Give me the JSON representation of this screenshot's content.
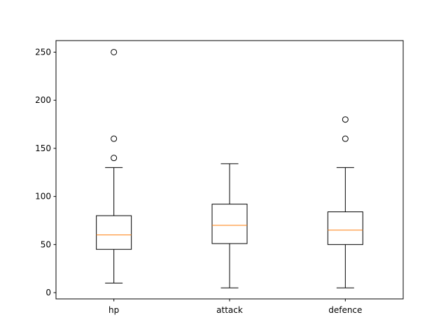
{
  "chart_data": {
    "type": "boxplot",
    "categories": [
      "hp",
      "attack",
      "defence"
    ],
    "boxes": [
      {
        "name": "hp",
        "whisker_low": 10,
        "q1": 45,
        "median": 60,
        "q3": 80,
        "whisker_high": 130,
        "outliers": [
          140,
          160,
          250
        ]
      },
      {
        "name": "attack",
        "whisker_low": 5,
        "q1": 51,
        "median": 70,
        "q3": 92,
        "whisker_high": 134,
        "outliers": []
      },
      {
        "name": "defence",
        "whisker_low": 5,
        "q1": 50,
        "median": 65,
        "q3": 84,
        "whisker_high": 130,
        "outliers": [
          160,
          180
        ]
      }
    ],
    "yticks": [
      0,
      50,
      100,
      150,
      200,
      250
    ],
    "ylim": [
      -6.5,
      262
    ],
    "grid": false,
    "colors": {
      "box": "#000000",
      "median": "#ff7f0e",
      "outlier": "#000000"
    }
  }
}
